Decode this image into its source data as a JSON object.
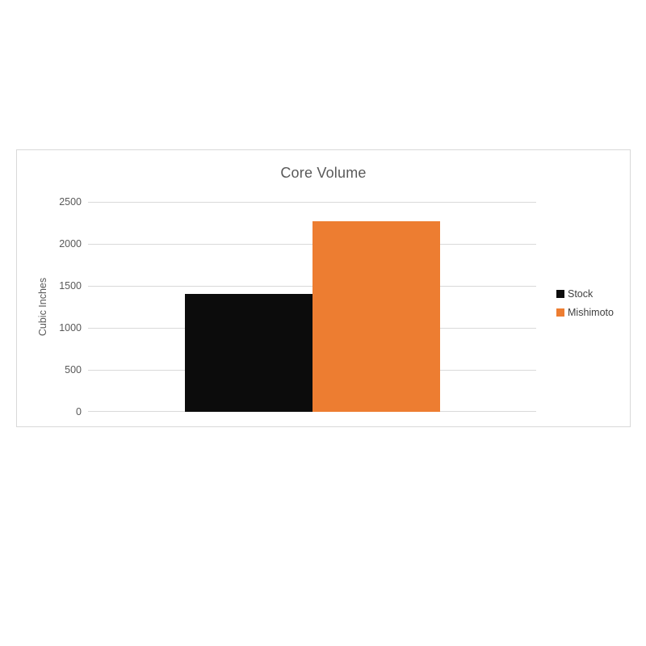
{
  "chart": {
    "title": "Core Volume",
    "ylabel": "Cubic Inches"
  },
  "chart_data": {
    "type": "bar",
    "title": "Core Volume",
    "xlabel": "",
    "ylabel": "Cubic Inches",
    "categories": [
      "Core Volume"
    ],
    "series": [
      {
        "name": "Stock",
        "color": "#0c0c0c",
        "values": [
          1400
        ]
      },
      {
        "name": "Mishimoto",
        "color": "#ed7d31",
        "values": [
          2270
        ]
      }
    ],
    "ylim": [
      0,
      2500
    ],
    "ytick_step": 500,
    "ytick_labels": [
      "0",
      "500",
      "1000",
      "1500",
      "2000",
      "2500"
    ],
    "grid": true,
    "gridline_color": "#d9d9d9",
    "legend_position": "right",
    "legend": [
      {
        "label": "Stock",
        "color": "#0c0c0c"
      },
      {
        "label": "Mishimoto",
        "color": "#ed7d31"
      }
    ],
    "text_color": "#595959"
  }
}
